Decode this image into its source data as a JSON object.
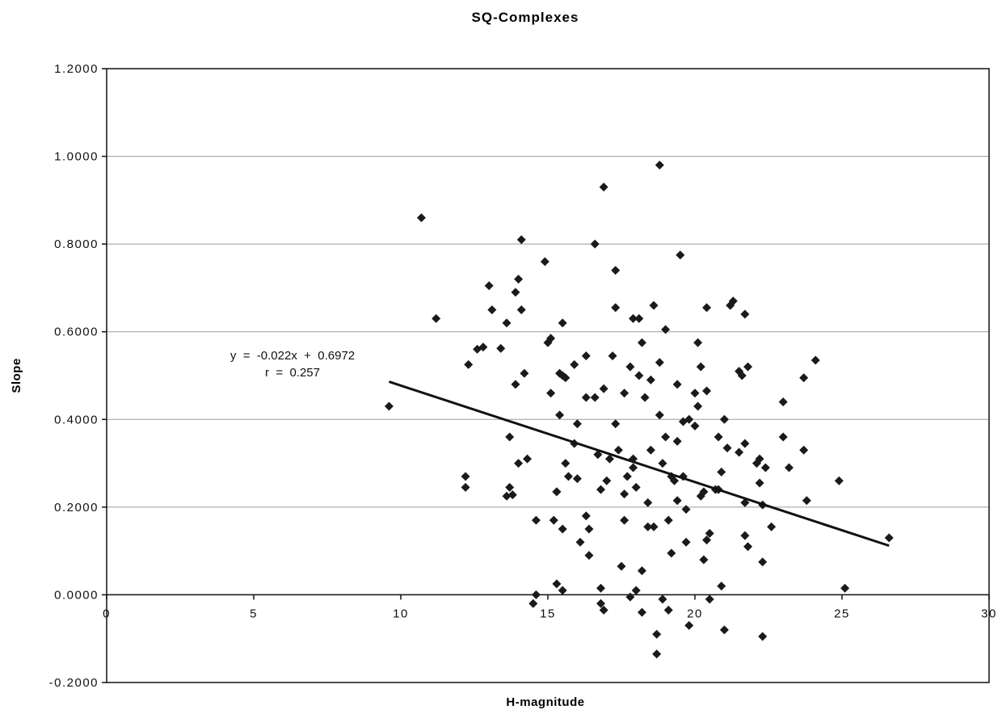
{
  "chart_data": {
    "type": "scatter",
    "title": "SQ-Complexes",
    "xlabel": "H-magnitude",
    "ylabel": "Slope",
    "xlim": [
      0,
      30
    ],
    "ylim": [
      -0.2,
      1.2
    ],
    "x_ticks": [
      0,
      5,
      10,
      15,
      20,
      25,
      30
    ],
    "x_tick_labels": [
      "0",
      "5",
      "10",
      "15",
      "20",
      "25",
      "30"
    ],
    "y_ticks": [
      -0.2,
      0.0,
      0.2,
      0.4,
      0.6,
      0.8,
      1.0,
      1.2
    ],
    "y_tick_labels": [
      "-0.2000",
      "0.0000",
      "0.2000",
      "0.4000",
      "0.6000",
      "0.8000",
      "1.0000",
      "1.2000"
    ],
    "grid": "horizontal",
    "legend": "none",
    "marker_color": "#1a1a1a",
    "trendline": {
      "slope": -0.022,
      "intercept": 0.6972,
      "x_range": [
        9.6,
        26.6
      ],
      "equation_label": "y  =  -0.022x  +  0.6972",
      "r_label": "r  =  0.257"
    },
    "series": [
      {
        "points": [
          [
            9.6,
            0.43
          ],
          [
            10.7,
            0.86
          ],
          [
            11.2,
            0.63
          ],
          [
            12.2,
            0.27
          ],
          [
            12.2,
            0.245
          ],
          [
            12.3,
            0.525
          ],
          [
            12.6,
            0.56
          ],
          [
            12.8,
            0.565
          ],
          [
            13.0,
            0.705
          ],
          [
            13.1,
            0.65
          ],
          [
            13.4,
            0.562
          ],
          [
            13.6,
            0.62
          ],
          [
            13.7,
            0.36
          ],
          [
            13.6,
            0.225
          ],
          [
            13.7,
            0.245
          ],
          [
            13.8,
            0.228
          ],
          [
            13.9,
            0.69
          ],
          [
            14.0,
            0.72
          ],
          [
            14.1,
            0.81
          ],
          [
            14.1,
            0.65
          ],
          [
            13.9,
            0.48
          ],
          [
            14.2,
            0.505
          ],
          [
            14.0,
            0.3
          ],
          [
            14.3,
            0.31
          ],
          [
            14.5,
            -0.02
          ],
          [
            14.6,
            0.0
          ],
          [
            14.6,
            0.17
          ],
          [
            14.9,
            0.76
          ],
          [
            15.0,
            0.575
          ],
          [
            15.1,
            0.585
          ],
          [
            15.1,
            0.46
          ],
          [
            15.2,
            0.17
          ],
          [
            15.3,
            0.235
          ],
          [
            15.3,
            0.235
          ],
          [
            15.3,
            0.025
          ],
          [
            15.5,
            0.62
          ],
          [
            15.5,
            0.5
          ],
          [
            15.4,
            0.505
          ],
          [
            15.4,
            0.41
          ],
          [
            15.5,
            0.15
          ],
          [
            15.6,
            0.495
          ],
          [
            15.6,
            0.3
          ],
          [
            15.5,
            0.01
          ],
          [
            15.7,
            0.27
          ],
          [
            15.9,
            0.345
          ],
          [
            15.9,
            0.525
          ],
          [
            16.0,
            0.39
          ],
          [
            16.0,
            0.265
          ],
          [
            16.1,
            0.12
          ],
          [
            16.3,
            0.545
          ],
          [
            16.3,
            0.45
          ],
          [
            16.3,
            0.18
          ],
          [
            16.4,
            0.09
          ],
          [
            16.4,
            0.15
          ],
          [
            16.6,
            0.8
          ],
          [
            16.6,
            0.45
          ],
          [
            16.7,
            0.32
          ],
          [
            16.8,
            0.24
          ],
          [
            16.9,
            0.93
          ],
          [
            16.9,
            0.47
          ],
          [
            16.8,
            0.015
          ],
          [
            16.8,
            -0.02
          ],
          [
            16.9,
            -0.035
          ],
          [
            17.0,
            0.26
          ],
          [
            17.1,
            0.31
          ],
          [
            17.2,
            0.545
          ],
          [
            17.3,
            0.74
          ],
          [
            17.3,
            0.655
          ],
          [
            17.3,
            0.39
          ],
          [
            17.4,
            0.33
          ],
          [
            17.5,
            0.065
          ],
          [
            17.6,
            0.23
          ],
          [
            17.6,
            0.17
          ],
          [
            17.6,
            0.46
          ],
          [
            17.7,
            0.27
          ],
          [
            17.8,
            0.52
          ],
          [
            17.8,
            -0.005
          ],
          [
            17.9,
            0.63
          ],
          [
            17.9,
            0.31
          ],
          [
            17.9,
            0.29
          ],
          [
            18.0,
            0.245
          ],
          [
            18.0,
            0.01
          ],
          [
            18.1,
            0.63
          ],
          [
            18.1,
            0.5
          ],
          [
            18.2,
            0.575
          ],
          [
            18.2,
            0.055
          ],
          [
            18.2,
            -0.04
          ],
          [
            18.3,
            0.45
          ],
          [
            18.4,
            0.21
          ],
          [
            18.4,
            0.155
          ],
          [
            18.5,
            0.49
          ],
          [
            18.5,
            0.33
          ],
          [
            18.6,
            0.66
          ],
          [
            18.6,
            0.155
          ],
          [
            18.7,
            -0.09
          ],
          [
            18.7,
            -0.135
          ],
          [
            18.8,
            0.98
          ],
          [
            18.8,
            0.53
          ],
          [
            18.8,
            0.41
          ],
          [
            18.9,
            0.3
          ],
          [
            18.9,
            -0.01
          ],
          [
            19.0,
            0.605
          ],
          [
            19.0,
            0.36
          ],
          [
            19.1,
            0.17
          ],
          [
            19.1,
            -0.035
          ],
          [
            19.2,
            0.27
          ],
          [
            19.2,
            0.095
          ],
          [
            19.3,
            0.26
          ],
          [
            19.4,
            0.48
          ],
          [
            19.4,
            0.35
          ],
          [
            19.4,
            0.215
          ],
          [
            19.5,
            0.775
          ],
          [
            19.6,
            0.395
          ],
          [
            19.6,
            0.27
          ],
          [
            19.7,
            0.195
          ],
          [
            19.7,
            0.12
          ],
          [
            19.8,
            0.4
          ],
          [
            19.8,
            -0.07
          ],
          [
            20.0,
            0.385
          ],
          [
            20.0,
            0.46
          ],
          [
            20.1,
            0.575
          ],
          [
            20.1,
            0.43
          ],
          [
            20.2,
            0.52
          ],
          [
            20.2,
            0.225
          ],
          [
            20.3,
            0.235
          ],
          [
            20.3,
            0.08
          ],
          [
            20.4,
            0.655
          ],
          [
            20.4,
            0.465
          ],
          [
            20.4,
            0.125
          ],
          [
            20.5,
            0.14
          ],
          [
            20.5,
            -0.01
          ],
          [
            20.7,
            0.24
          ],
          [
            20.8,
            0.36
          ],
          [
            20.8,
            0.24
          ],
          [
            20.9,
            0.28
          ],
          [
            20.9,
            0.02
          ],
          [
            21.0,
            0.4
          ],
          [
            21.0,
            -0.08
          ],
          [
            21.1,
            0.335
          ],
          [
            21.2,
            0.66
          ],
          [
            21.3,
            0.67
          ],
          [
            21.5,
            0.51
          ],
          [
            21.5,
            0.325
          ],
          [
            21.6,
            0.5
          ],
          [
            21.7,
            0.64
          ],
          [
            21.7,
            0.345
          ],
          [
            21.7,
            0.21
          ],
          [
            21.7,
            0.135
          ],
          [
            21.8,
            0.11
          ],
          [
            21.8,
            0.52
          ],
          [
            22.1,
            0.3
          ],
          [
            22.2,
            0.31
          ],
          [
            22.2,
            0.255
          ],
          [
            22.3,
            0.075
          ],
          [
            22.3,
            0.205
          ],
          [
            22.3,
            -0.095
          ],
          [
            22.4,
            0.29
          ],
          [
            22.6,
            0.155
          ],
          [
            23.0,
            0.44
          ],
          [
            23.0,
            0.36
          ],
          [
            23.2,
            0.29
          ],
          [
            23.7,
            0.495
          ],
          [
            23.7,
            0.33
          ],
          [
            23.8,
            0.215
          ],
          [
            24.1,
            0.535
          ],
          [
            24.9,
            0.26
          ],
          [
            25.1,
            0.015
          ],
          [
            26.6,
            0.13
          ]
        ]
      }
    ]
  }
}
